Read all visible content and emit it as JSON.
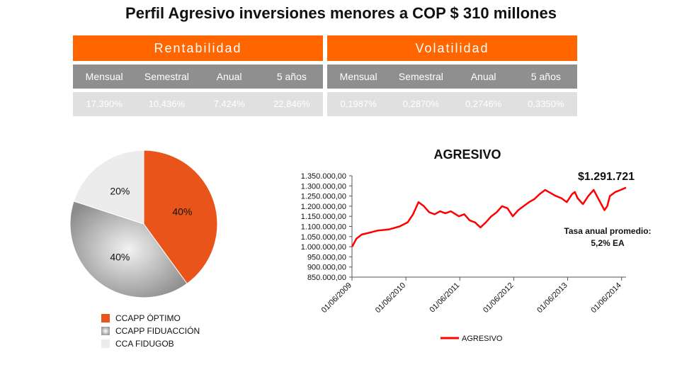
{
  "title": "Perfil Agresivo inversiones menores a COP $ 310 millones",
  "rentabilidad": {
    "header": "Rentabilidad",
    "columns": [
      "Mensual",
      "Semestral",
      "Anual",
      "5 años"
    ],
    "values": [
      "17,390%",
      "10,436%",
      "7,424%",
      "22,846%"
    ]
  },
  "volatilidad": {
    "header": "Volatilidad",
    "columns": [
      "Mensual",
      "Semestral",
      "Anual",
      "5 años"
    ],
    "values": [
      "0,1987%",
      "0,2870%",
      "0,2746%",
      "0,3350%"
    ]
  },
  "colors": {
    "orange": "#ff6600",
    "header_gray": "#8f8f8f",
    "value_gray": "#e0e0e0",
    "line_red": "#ff0000"
  },
  "chart_data": [
    {
      "type": "pie",
      "labels": [
        "CCAPP ÓPTIMO",
        "CCAPP FIDUACCIÓN",
        "CCA FIDUGOB"
      ],
      "values": [
        40,
        40,
        20
      ],
      "value_labels": [
        "40%",
        "40%",
        "20%"
      ],
      "colors": [
        "#e8541a",
        "#a8a8a8",
        "#ececec"
      ],
      "legend": "bottom"
    },
    {
      "type": "line",
      "title": "AGRESIVO",
      "annotation_value": "$1.291.721",
      "annotation_text_1": "Tasa anual promedio:",
      "annotation_text_2": "5,2%  EA",
      "ylim": [
        850000,
        1350000
      ],
      "y_ticks": [
        850000,
        900000,
        950000,
        1000000,
        1050000,
        1100000,
        1150000,
        1200000,
        1250000,
        1300000,
        1350000
      ],
      "y_tick_labels": [
        "850.000,00",
        "900.000,00",
        "950.000,00",
        "1.000.000,00",
        "1.050.000,00",
        "1.100.000,00",
        "1.150.000,00",
        "1.200.000,00",
        "1.250.000,00",
        "1.300.000,00",
        "1.350.000,00"
      ],
      "x_ticks": [
        2009.417,
        2010.417,
        2011.417,
        2012.417,
        2013.417,
        2014.417
      ],
      "x_tick_labels": [
        "01/06/2009",
        "01/06/2010",
        "01/06/2011",
        "01/06/2012",
        "01/06/2013",
        "01/06/2014"
      ],
      "xlim": [
        2009.417,
        2014.5
      ],
      "legend": "bottom",
      "series": [
        {
          "name": "AGRESIVO",
          "x": [
            2009.42,
            2009.5,
            2009.6,
            2009.75,
            2009.9,
            2010.1,
            2010.3,
            2010.45,
            2010.55,
            2010.65,
            2010.75,
            2010.85,
            2010.95,
            2011.05,
            2011.15,
            2011.25,
            2011.4,
            2011.5,
            2011.6,
            2011.7,
            2011.8,
            2011.9,
            2012.0,
            2012.1,
            2012.2,
            2012.3,
            2012.4,
            2012.5,
            2012.6,
            2012.7,
            2012.8,
            2012.9,
            2013.0,
            2013.1,
            2013.2,
            2013.3,
            2013.4,
            2013.5,
            2013.55,
            2013.6,
            2013.7,
            2013.8,
            2013.9,
            2014.0,
            2014.1,
            2014.15,
            2014.2,
            2014.3,
            2014.4,
            2014.5
          ],
          "values": [
            1000000,
            1040000,
            1060000,
            1070000,
            1080000,
            1085000,
            1100000,
            1120000,
            1160000,
            1220000,
            1200000,
            1170000,
            1160000,
            1175000,
            1165000,
            1175000,
            1150000,
            1160000,
            1130000,
            1120000,
            1095000,
            1120000,
            1150000,
            1170000,
            1200000,
            1190000,
            1150000,
            1180000,
            1200000,
            1220000,
            1235000,
            1260000,
            1280000,
            1265000,
            1250000,
            1240000,
            1220000,
            1260000,
            1270000,
            1240000,
            1210000,
            1250000,
            1280000,
            1230000,
            1180000,
            1200000,
            1250000,
            1270000,
            1280000,
            1291721
          ]
        }
      ]
    }
  ]
}
